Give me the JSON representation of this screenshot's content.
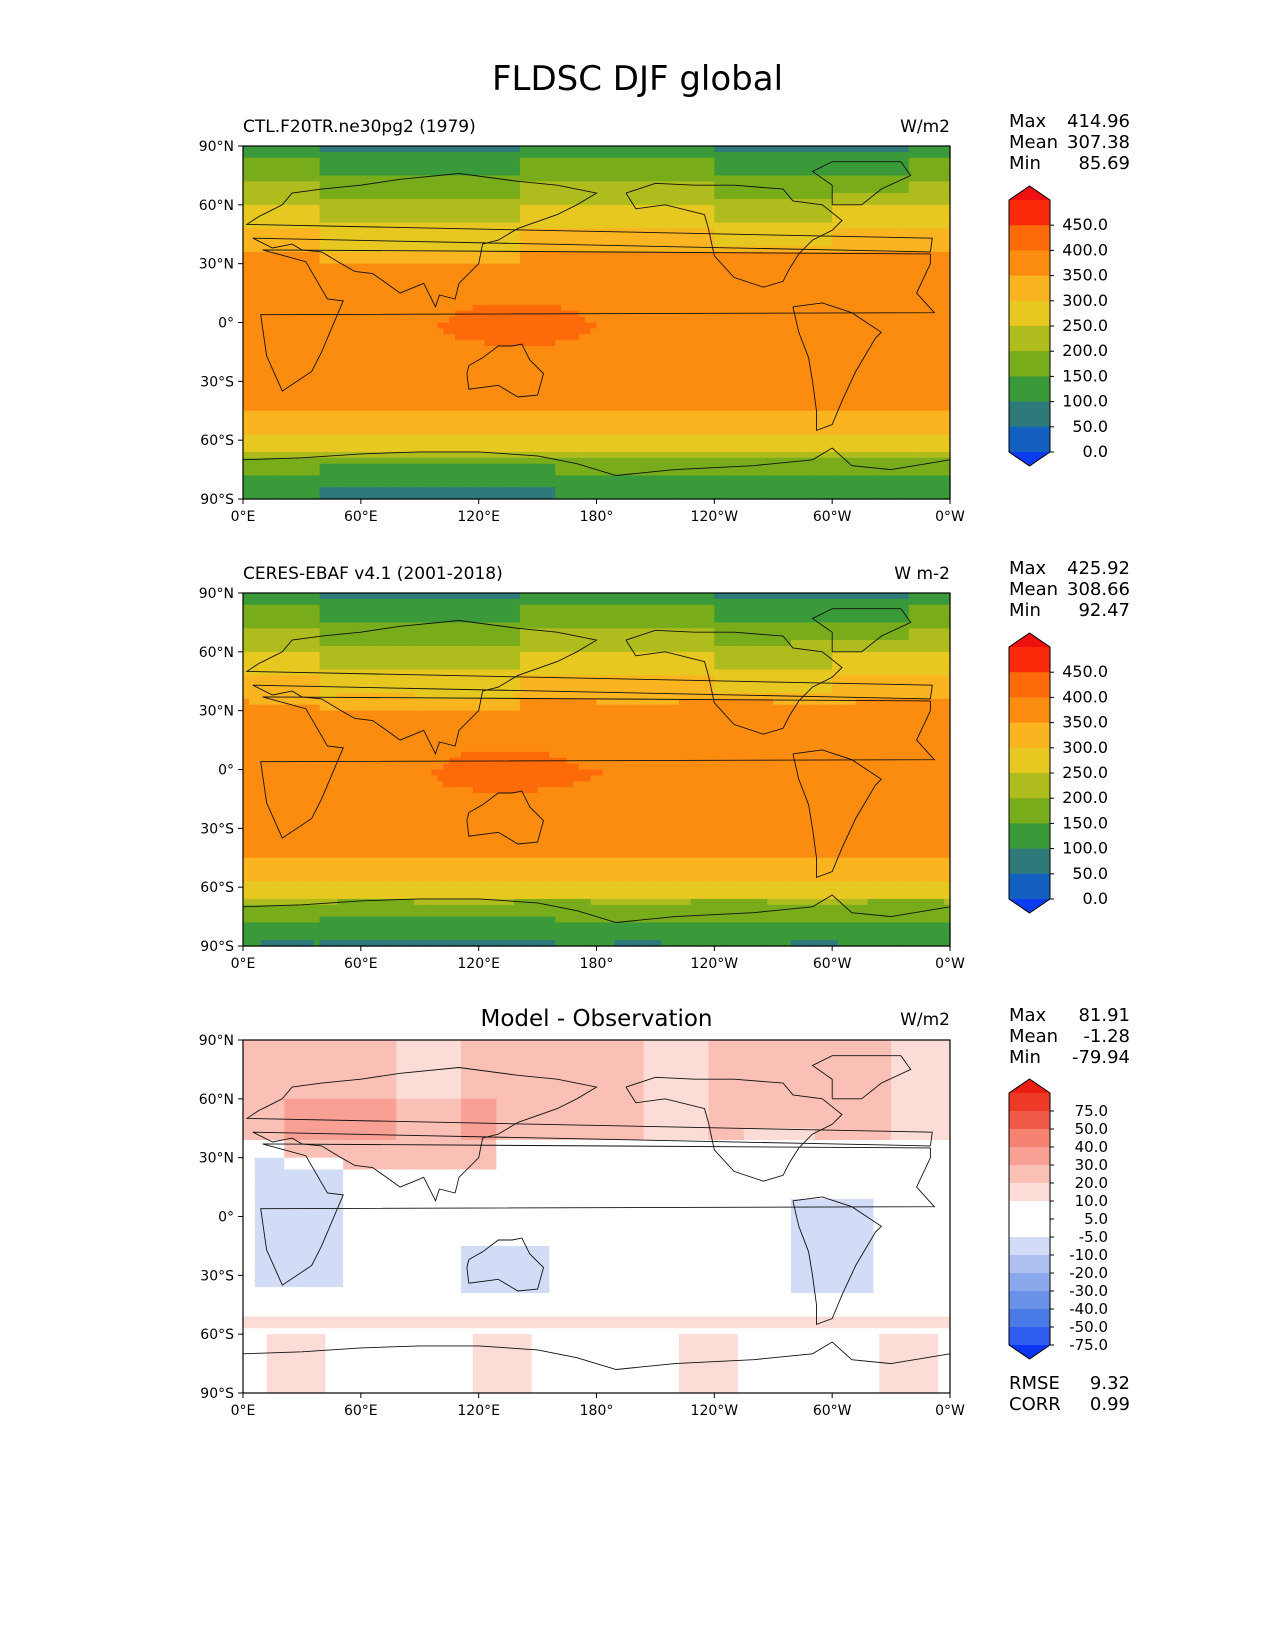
{
  "figure": {
    "title": "FLDSC DJF global"
  },
  "palettes": {
    "abs": [
      "#0b3cf0",
      "#1460c0",
      "#2e7a7a",
      "#3a9a3a",
      "#78ac1a",
      "#aebc1e",
      "#e6c820",
      "#fab420",
      "#fc8c10",
      "#fc6a0a",
      "#fa2a0a",
      "#f01010"
    ],
    "diff": [
      "#0c34f4",
      "#2e5ef0",
      "#4a7ae6",
      "#6a90e8",
      "#8ca8ec",
      "#aec0f0",
      "#d2dcf6",
      "#ffffff",
      "#ffffff",
      "#fcdcd6",
      "#fac0b6",
      "#f8a094",
      "#f68272",
      "#f05a48",
      "#ec3a26",
      "#e81e10"
    ]
  },
  "panels": [
    {
      "left_title": "CTL.F20TR.ne30pg2 (1979)",
      "center_title": "",
      "units": "W/m2",
      "stats": {
        "max_label": "Max",
        "max": "414.96",
        "mean_label": "Mean",
        "mean": "307.38",
        "min_label": "Min",
        "min": "85.69"
      },
      "colorbar": {
        "palette": "abs",
        "ticks": [
          "450.0",
          "400.0",
          "350.0",
          "300.0",
          "250.0",
          "200.0",
          "150.0",
          "100.0",
          "50.0",
          "0.0"
        ]
      },
      "field": "ctl"
    },
    {
      "left_title": "CERES-EBAF v4.1 (2001-2018)",
      "center_title": "",
      "units": "W m-2",
      "stats": {
        "max_label": "Max",
        "max": "425.92",
        "mean_label": "Mean",
        "mean": "308.66",
        "min_label": "Min",
        "min": "92.47"
      },
      "colorbar": {
        "palette": "abs",
        "ticks": [
          "450.0",
          "400.0",
          "350.0",
          "300.0",
          "250.0",
          "200.0",
          "150.0",
          "100.0",
          "50.0",
          "0.0"
        ]
      },
      "field": "obs"
    },
    {
      "left_title": "",
      "center_title": "Model - Observation",
      "units": "W/m2",
      "stats": {
        "max_label": "Max",
        "max": "81.91",
        "mean_label": "Mean",
        "mean": "-1.28",
        "min_label": "Min",
        "min": "-79.94"
      },
      "colorbar": {
        "palette": "diff",
        "ticks": [
          "75.0",
          "50.0",
          "40.0",
          "30.0",
          "20.0",
          "10.0",
          "5.0",
          "-5.0",
          "-10.0",
          "-20.0",
          "-30.0",
          "-40.0",
          "-50.0",
          "-75.0"
        ]
      },
      "extra_stats": {
        "rmse_label": "RMSE",
        "rmse": "9.32",
        "corr_label": "CORR",
        "corr": "0.99"
      },
      "field": "diff"
    }
  ],
  "axes": {
    "lat_ticks": [
      "90°N",
      "60°N",
      "30°N",
      "0°",
      "30°S",
      "60°S",
      "90°S"
    ],
    "lon_ticks": [
      "0°E",
      "60°E",
      "120°E",
      "180°",
      "120°W",
      "60°W",
      "0°W"
    ]
  }
}
